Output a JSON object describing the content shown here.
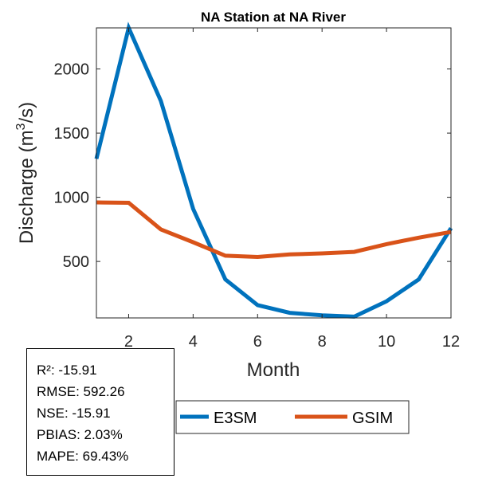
{
  "chart_data": {
    "type": "line",
    "title": "NA  Station at  NA  River",
    "xlabel": "Month",
    "ylabel_main": "Discharge (m",
    "ylabel_sup": "3",
    "ylabel_tail": "/s)",
    "xlim": [
      1,
      12
    ],
    "ylim": [
      60,
      2320
    ],
    "xticks": [
      2,
      4,
      6,
      8,
      10,
      12
    ],
    "yticks": [
      500,
      1000,
      1500,
      2000
    ],
    "x": [
      1,
      2,
      3,
      4,
      5,
      6,
      7,
      8,
      9,
      10,
      11,
      12
    ],
    "series": [
      {
        "name": "E3SM",
        "color": "#0072BD",
        "values": [
          1300,
          2320,
          1750,
          910,
          360,
          160,
          100,
          80,
          70,
          190,
          360,
          760
        ]
      },
      {
        "name": "GSIM",
        "color": "#D95319",
        "values": [
          960,
          957,
          750,
          650,
          545,
          535,
          555,
          563,
          575,
          635,
          685,
          730
        ]
      }
    ]
  },
  "stats": {
    "r2": "R²: -15.91",
    "rmse": "RMSE: 592.26",
    "nse": "NSE: -15.91",
    "pbias": "PBIAS: 2.03%",
    "mape": "MAPE: 69.43%"
  }
}
